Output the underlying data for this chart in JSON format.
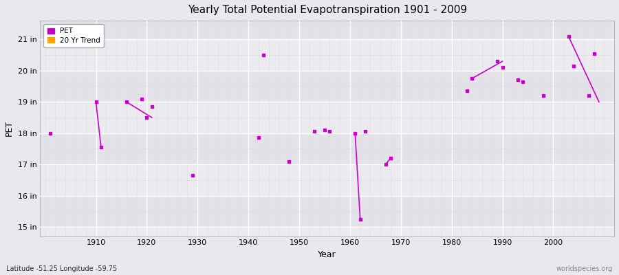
{
  "title": "Yearly Total Potential Evapotranspiration 1901 - 2009",
  "xlabel": "Year",
  "ylabel": "PET",
  "xlim": [
    1899,
    2012
  ],
  "ylim": [
    14.7,
    21.6
  ],
  "ytick_labels": [
    "15 in",
    "16 in",
    "17 in",
    "18 in",
    "19 in",
    "20 in",
    "21 in"
  ],
  "ytick_values": [
    15,
    16,
    17,
    18,
    19,
    20,
    21
  ],
  "xtick_values": [
    1910,
    1920,
    1930,
    1940,
    1950,
    1960,
    1970,
    1980,
    1990,
    2000
  ],
  "background_color": "#e8e8ed",
  "plot_bg_color": "#eaeaef",
  "grid_major_color": "#ffffff",
  "grid_minor_color": "#dcdce2",
  "pet_color": "#cc00cc",
  "trend_color": "#ffa500",
  "pet_markersize": 3,
  "watermark": "worldspecies.org",
  "lat_lon_label": "Latitude -51.25 Longitude -59.75",
  "pet_data": [
    [
      1901,
      18.0
    ],
    [
      1910,
      19.0
    ],
    [
      1911,
      17.55
    ],
    [
      1916,
      19.0
    ],
    [
      1919,
      19.1
    ],
    [
      1920,
      18.5
    ],
    [
      1921,
      18.85
    ],
    [
      1929,
      16.65
    ],
    [
      1942,
      17.85
    ],
    [
      1943,
      20.5
    ],
    [
      1948,
      17.1
    ],
    [
      1953,
      18.05
    ],
    [
      1955,
      18.1
    ],
    [
      1956,
      18.05
    ],
    [
      1961,
      18.0
    ],
    [
      1962,
      15.25
    ],
    [
      1963,
      18.05
    ],
    [
      1967,
      17.0
    ],
    [
      1968,
      17.2
    ],
    [
      1983,
      19.35
    ],
    [
      1984,
      19.75
    ],
    [
      1989,
      20.3
    ],
    [
      1990,
      20.1
    ],
    [
      1993,
      19.7
    ],
    [
      1994,
      19.65
    ],
    [
      1998,
      19.2
    ],
    [
      2003,
      21.1
    ],
    [
      2004,
      20.15
    ],
    [
      2007,
      19.2
    ],
    [
      2008,
      20.55
    ]
  ],
  "trend_segments": [
    [
      [
        1910,
        19.0
      ],
      [
        1911,
        17.55
      ]
    ],
    [
      [
        1916,
        19.0
      ],
      [
        1921,
        18.5
      ]
    ],
    [
      [
        1961,
        18.0
      ],
      [
        1962,
        15.25
      ]
    ],
    [
      [
        1967,
        17.0
      ],
      [
        1968,
        17.2
      ]
    ],
    [
      [
        1984,
        19.75
      ],
      [
        1990,
        20.3
      ]
    ],
    [
      [
        2003,
        21.1
      ],
      [
        2009,
        19.0
      ]
    ]
  ],
  "band_colors": [
    "#e2e2e8",
    "#eaeaef"
  ],
  "band_edges": [
    15,
    16,
    17,
    18,
    19,
    20,
    21,
    22
  ]
}
